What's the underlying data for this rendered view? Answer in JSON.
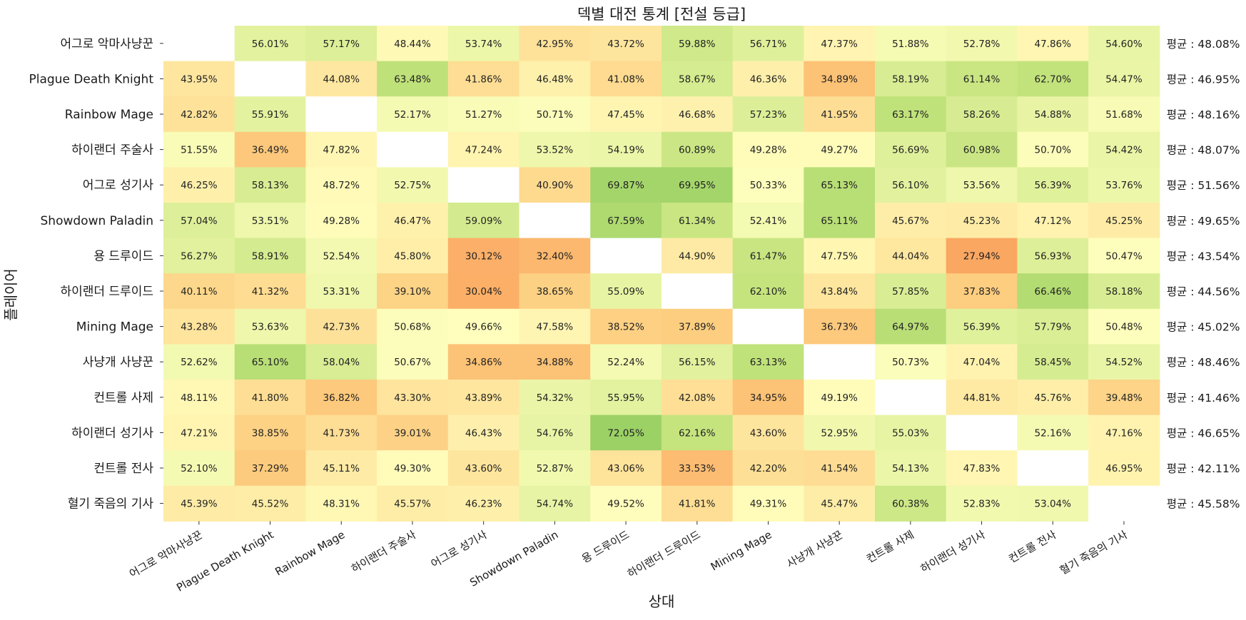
{
  "chart_data": {
    "type": "heatmap",
    "title": "덱별 대전 통계 [전설 등급]",
    "xlabel": "상대",
    "ylabel": "플레이어",
    "rows": [
      "어그로 악마사냥꾼",
      "Plague Death Knight",
      "Rainbow Mage",
      "하이랜더 주술사",
      "어그로 성기사",
      "Showdown Paladin",
      "용 드루이드",
      "하이랜더 드루이드",
      "Mining Mage",
      "사냥개 사냥꾼",
      "컨트롤 사제",
      "하이랜더 성기사",
      "컨트롤 전사",
      "혈기 죽음의 기사"
    ],
    "columns": [
      "어그로 악마사냥꾼",
      "Plague Death Knight",
      "Rainbow Mage",
      "하이랜더 주술사",
      "어그로 성기사",
      "Showdown Paladin",
      "용 드루이드",
      "하이랜더 드루이드",
      "Mining Mage",
      "사냥개 사냥꾼",
      "컨트롤 사제",
      "하이랜더 성기사",
      "컨트롤 전사",
      "혈기 죽음의 기사"
    ],
    "values": [
      [
        null,
        56.01,
        57.17,
        48.44,
        53.74,
        42.95,
        43.72,
        59.88,
        56.71,
        47.37,
        51.88,
        52.78,
        47.86,
        54.6
      ],
      [
        43.95,
        null,
        44.08,
        63.48,
        41.86,
        46.48,
        41.08,
        58.67,
        46.36,
        34.89,
        58.19,
        61.14,
        62.7,
        54.47
      ],
      [
        42.82,
        55.91,
        null,
        52.17,
        51.27,
        50.71,
        47.45,
        46.68,
        57.23,
        41.95,
        63.17,
        58.26,
        54.88,
        51.68
      ],
      [
        51.55,
        36.49,
        47.82,
        null,
        47.24,
        53.52,
        54.19,
        60.89,
        49.28,
        49.27,
        56.69,
        60.98,
        50.7,
        54.42
      ],
      [
        46.25,
        58.13,
        48.72,
        52.75,
        null,
        40.9,
        69.87,
        69.95,
        50.33,
        65.13,
        56.1,
        53.56,
        56.39,
        53.76
      ],
      [
        57.04,
        53.51,
        49.28,
        46.47,
        59.09,
        null,
        67.59,
        61.34,
        52.41,
        65.11,
        45.67,
        45.23,
        47.12,
        45.25
      ],
      [
        56.27,
        58.91,
        52.54,
        45.8,
        30.12,
        32.4,
        null,
        44.9,
        61.47,
        47.75,
        44.04,
        27.94,
        56.93,
        50.47
      ],
      [
        40.11,
        41.32,
        53.31,
        39.1,
        30.04,
        38.65,
        55.09,
        null,
        62.1,
        43.84,
        57.85,
        37.83,
        66.46,
        58.18
      ],
      [
        43.28,
        53.63,
        42.73,
        50.68,
        49.66,
        47.58,
        38.52,
        37.89,
        null,
        36.73,
        64.97,
        56.39,
        57.79,
        50.48
      ],
      [
        52.62,
        65.1,
        58.04,
        50.67,
        34.86,
        34.88,
        52.24,
        56.15,
        63.13,
        null,
        50.73,
        47.04,
        58.45,
        54.52
      ],
      [
        48.11,
        41.8,
        36.82,
        43.3,
        43.89,
        54.32,
        55.95,
        42.08,
        34.95,
        49.19,
        null,
        44.81,
        45.76,
        39.48
      ],
      [
        47.21,
        38.85,
        41.73,
        39.01,
        46.43,
        54.76,
        72.05,
        62.16,
        43.6,
        52.95,
        55.03,
        null,
        52.16,
        47.16
      ],
      [
        52.1,
        37.29,
        45.11,
        49.3,
        43.6,
        52.87,
        43.06,
        33.53,
        42.2,
        41.54,
        54.13,
        47.83,
        null,
        46.95
      ],
      [
        45.39,
        45.52,
        48.31,
        45.57,
        46.23,
        54.74,
        49.52,
        41.81,
        49.31,
        45.47,
        60.38,
        52.83,
        53.04,
        null
      ]
    ],
    "row_averages": [
      "평균 : 48.08%",
      "평균 : 46.95%",
      "평균 : 48.16%",
      "평균 : 48.07%",
      "평균 : 51.56%",
      "평균 : 49.65%",
      "평균 : 43.54%",
      "평균 : 44.56%",
      "평균 : 45.02%",
      "평균 : 48.46%",
      "평균 : 41.46%",
      "평균 : 46.65%",
      "평균 : 42.11%",
      "평균 : 45.58%"
    ],
    "value_format": "percent_2dp",
    "colormap": [
      "#f99b58",
      "#fdcc7e",
      "#ffffbe",
      "#c3e37c",
      "#8fcc5e"
    ],
    "color_range": [
      25,
      75
    ],
    "missing_color": "#ffffff",
    "grid": false,
    "legend": "none"
  }
}
